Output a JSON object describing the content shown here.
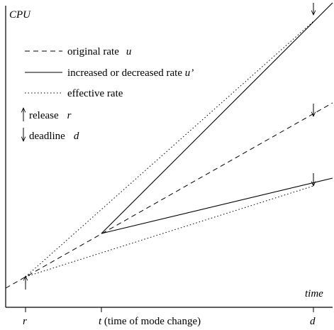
{
  "axes": {
    "y_label": "CPU",
    "x_label": "time",
    "x_ticks": [
      {
        "symbol": "r"
      },
      {
        "symbol": "t",
        "note": "(time of mode change)"
      },
      {
        "symbol": "d"
      }
    ]
  },
  "legend": [
    {
      "label": "original rate",
      "symbol": "u"
    },
    {
      "label": "increased or decreased rate",
      "symbol": "u’"
    },
    {
      "label": "effective rate"
    }
  ],
  "markers": [
    {
      "label": "release",
      "symbol": "r"
    },
    {
      "label": "deadline",
      "symbol": "d"
    }
  ]
}
